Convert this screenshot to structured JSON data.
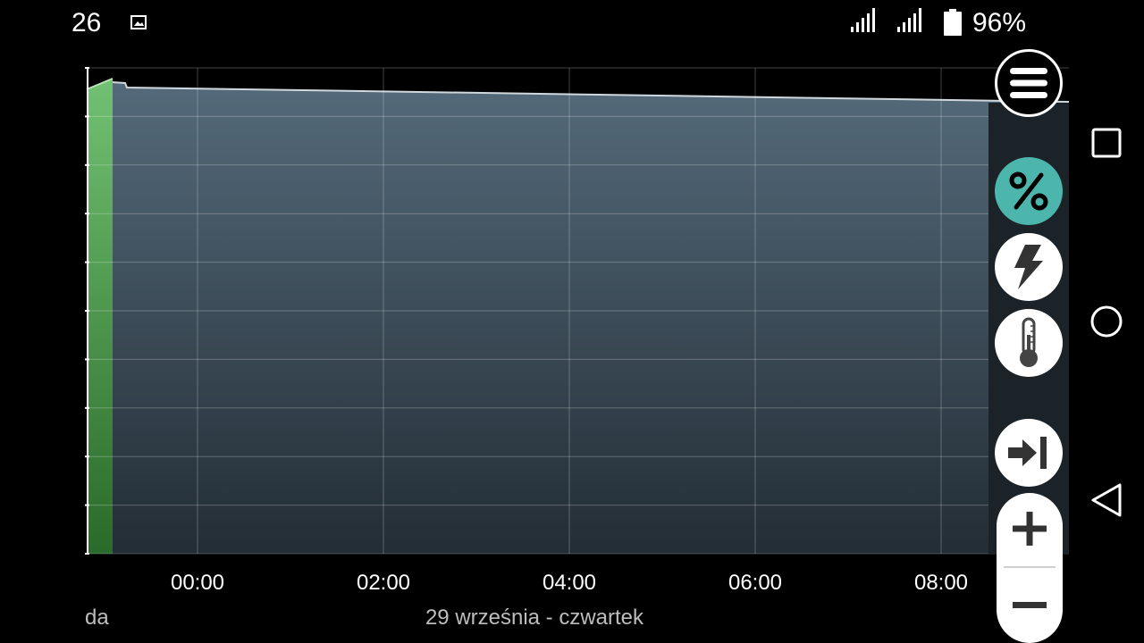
{
  "status_bar": {
    "time": "26",
    "battery_percent": "96%",
    "icons": [
      "gallery-icon",
      "signal-icon",
      "signal-icon",
      "battery-icon"
    ]
  },
  "chart_data": {
    "type": "area",
    "x_ticks": [
      "00:00",
      "02:00",
      "04:00",
      "06:00",
      "08:00"
    ],
    "day_label": "29 września - czwartek",
    "prev_day_label": "da",
    "grid": true,
    "series": [
      {
        "values_description_color": "#6abf69",
        "fill": "#6abf69"
      },
      {
        "fill": "#4e6170"
      }
    ]
  },
  "controls": {
    "icons": [
      "menu-icon",
      "percent-icon",
      "bolt-icon",
      "thermometer-icon",
      "skip-to-end-icon",
      "plus-icon",
      "minus-icon"
    ],
    "accent_color": "#4db6ac"
  },
  "nav_bar": {
    "icons": [
      "recents-icon",
      "home-icon",
      "back-icon"
    ]
  }
}
